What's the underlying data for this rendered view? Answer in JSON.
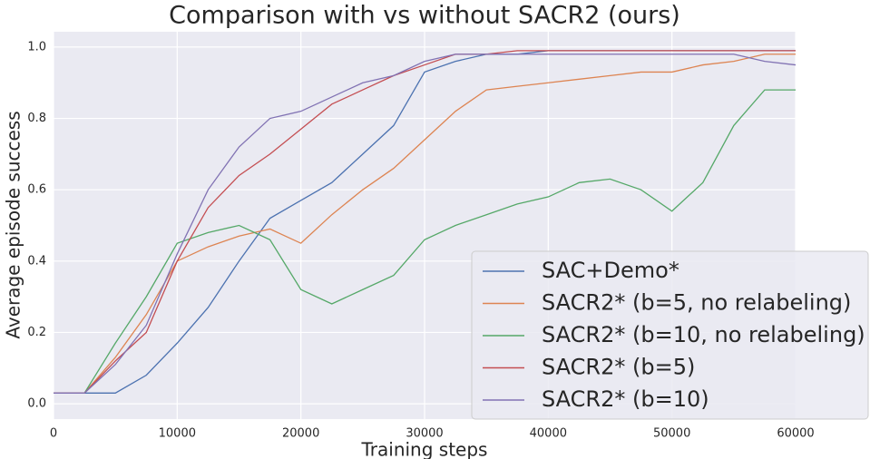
{
  "chart_data": {
    "type": "line",
    "title": "Comparison with vs without SACR2 (ours)",
    "x_label": "Training steps",
    "y_label": "Average episode success",
    "x": [
      0,
      2500,
      5000,
      7500,
      10000,
      12500,
      15000,
      17500,
      20000,
      22500,
      25000,
      27500,
      30000,
      32500,
      35000,
      37500,
      40000,
      42500,
      45000,
      47500,
      50000,
      52500,
      55000,
      57500,
      60000
    ],
    "series": [
      {
        "name": "SAC+Demo*",
        "color": "#4c72b0",
        "values": [
          0.03,
          0.03,
          0.03,
          0.08,
          0.17,
          0.27,
          0.4,
          0.52,
          0.57,
          0.62,
          0.7,
          0.78,
          0.93,
          0.96,
          0.98,
          0.98,
          0.99,
          0.99,
          0.99,
          0.99,
          0.99,
          0.99,
          0.99,
          0.99,
          0.99
        ]
      },
      {
        "name": "SACR2* (b=5, no relabeling)",
        "color": "#dd8452",
        "values": [
          0.03,
          0.03,
          0.13,
          0.25,
          0.4,
          0.44,
          0.47,
          0.49,
          0.45,
          0.53,
          0.6,
          0.66,
          0.74,
          0.82,
          0.88,
          0.89,
          0.9,
          0.91,
          0.92,
          0.93,
          0.93,
          0.95,
          0.96,
          0.98,
          0.98
        ]
      },
      {
        "name": "SACR2* (b=10, no relabeling)",
        "color": "#55a868",
        "values": [
          0.03,
          0.03,
          0.17,
          0.3,
          0.45,
          0.48,
          0.5,
          0.46,
          0.32,
          0.28,
          0.32,
          0.36,
          0.46,
          0.5,
          0.53,
          0.56,
          0.58,
          0.62,
          0.63,
          0.6,
          0.54,
          0.62,
          0.78,
          0.88,
          0.88
        ]
      },
      {
        "name": "SACR2* (b=5)",
        "color": "#c44e52",
        "values": [
          0.03,
          0.03,
          0.12,
          0.2,
          0.4,
          0.55,
          0.64,
          0.7,
          0.77,
          0.84,
          0.88,
          0.92,
          0.95,
          0.98,
          0.98,
          0.99,
          0.99,
          0.99,
          0.99,
          0.99,
          0.99,
          0.99,
          0.99,
          0.99,
          0.99
        ]
      },
      {
        "name": "SACR2* (b=10)",
        "color": "#8172b3",
        "values": [
          0.03,
          0.03,
          0.11,
          0.22,
          0.42,
          0.6,
          0.72,
          0.8,
          0.82,
          0.86,
          0.9,
          0.92,
          0.96,
          0.98,
          0.98,
          0.98,
          0.98,
          0.98,
          0.98,
          0.98,
          0.98,
          0.98,
          0.98,
          0.96,
          0.95
        ]
      }
    ],
    "xlim": [
      0,
      60000
    ],
    "ylim": [
      -0.043,
      1.043
    ],
    "xticks": [
      0,
      10000,
      20000,
      30000,
      40000,
      50000,
      60000
    ],
    "yticks": [
      {
        "value": 0,
        "label": "0.0"
      },
      0.2,
      0.4,
      0.6,
      0.8,
      {
        "value": 1,
        "label": "1.0"
      }
    ],
    "grid": true,
    "legend": "lower right"
  }
}
